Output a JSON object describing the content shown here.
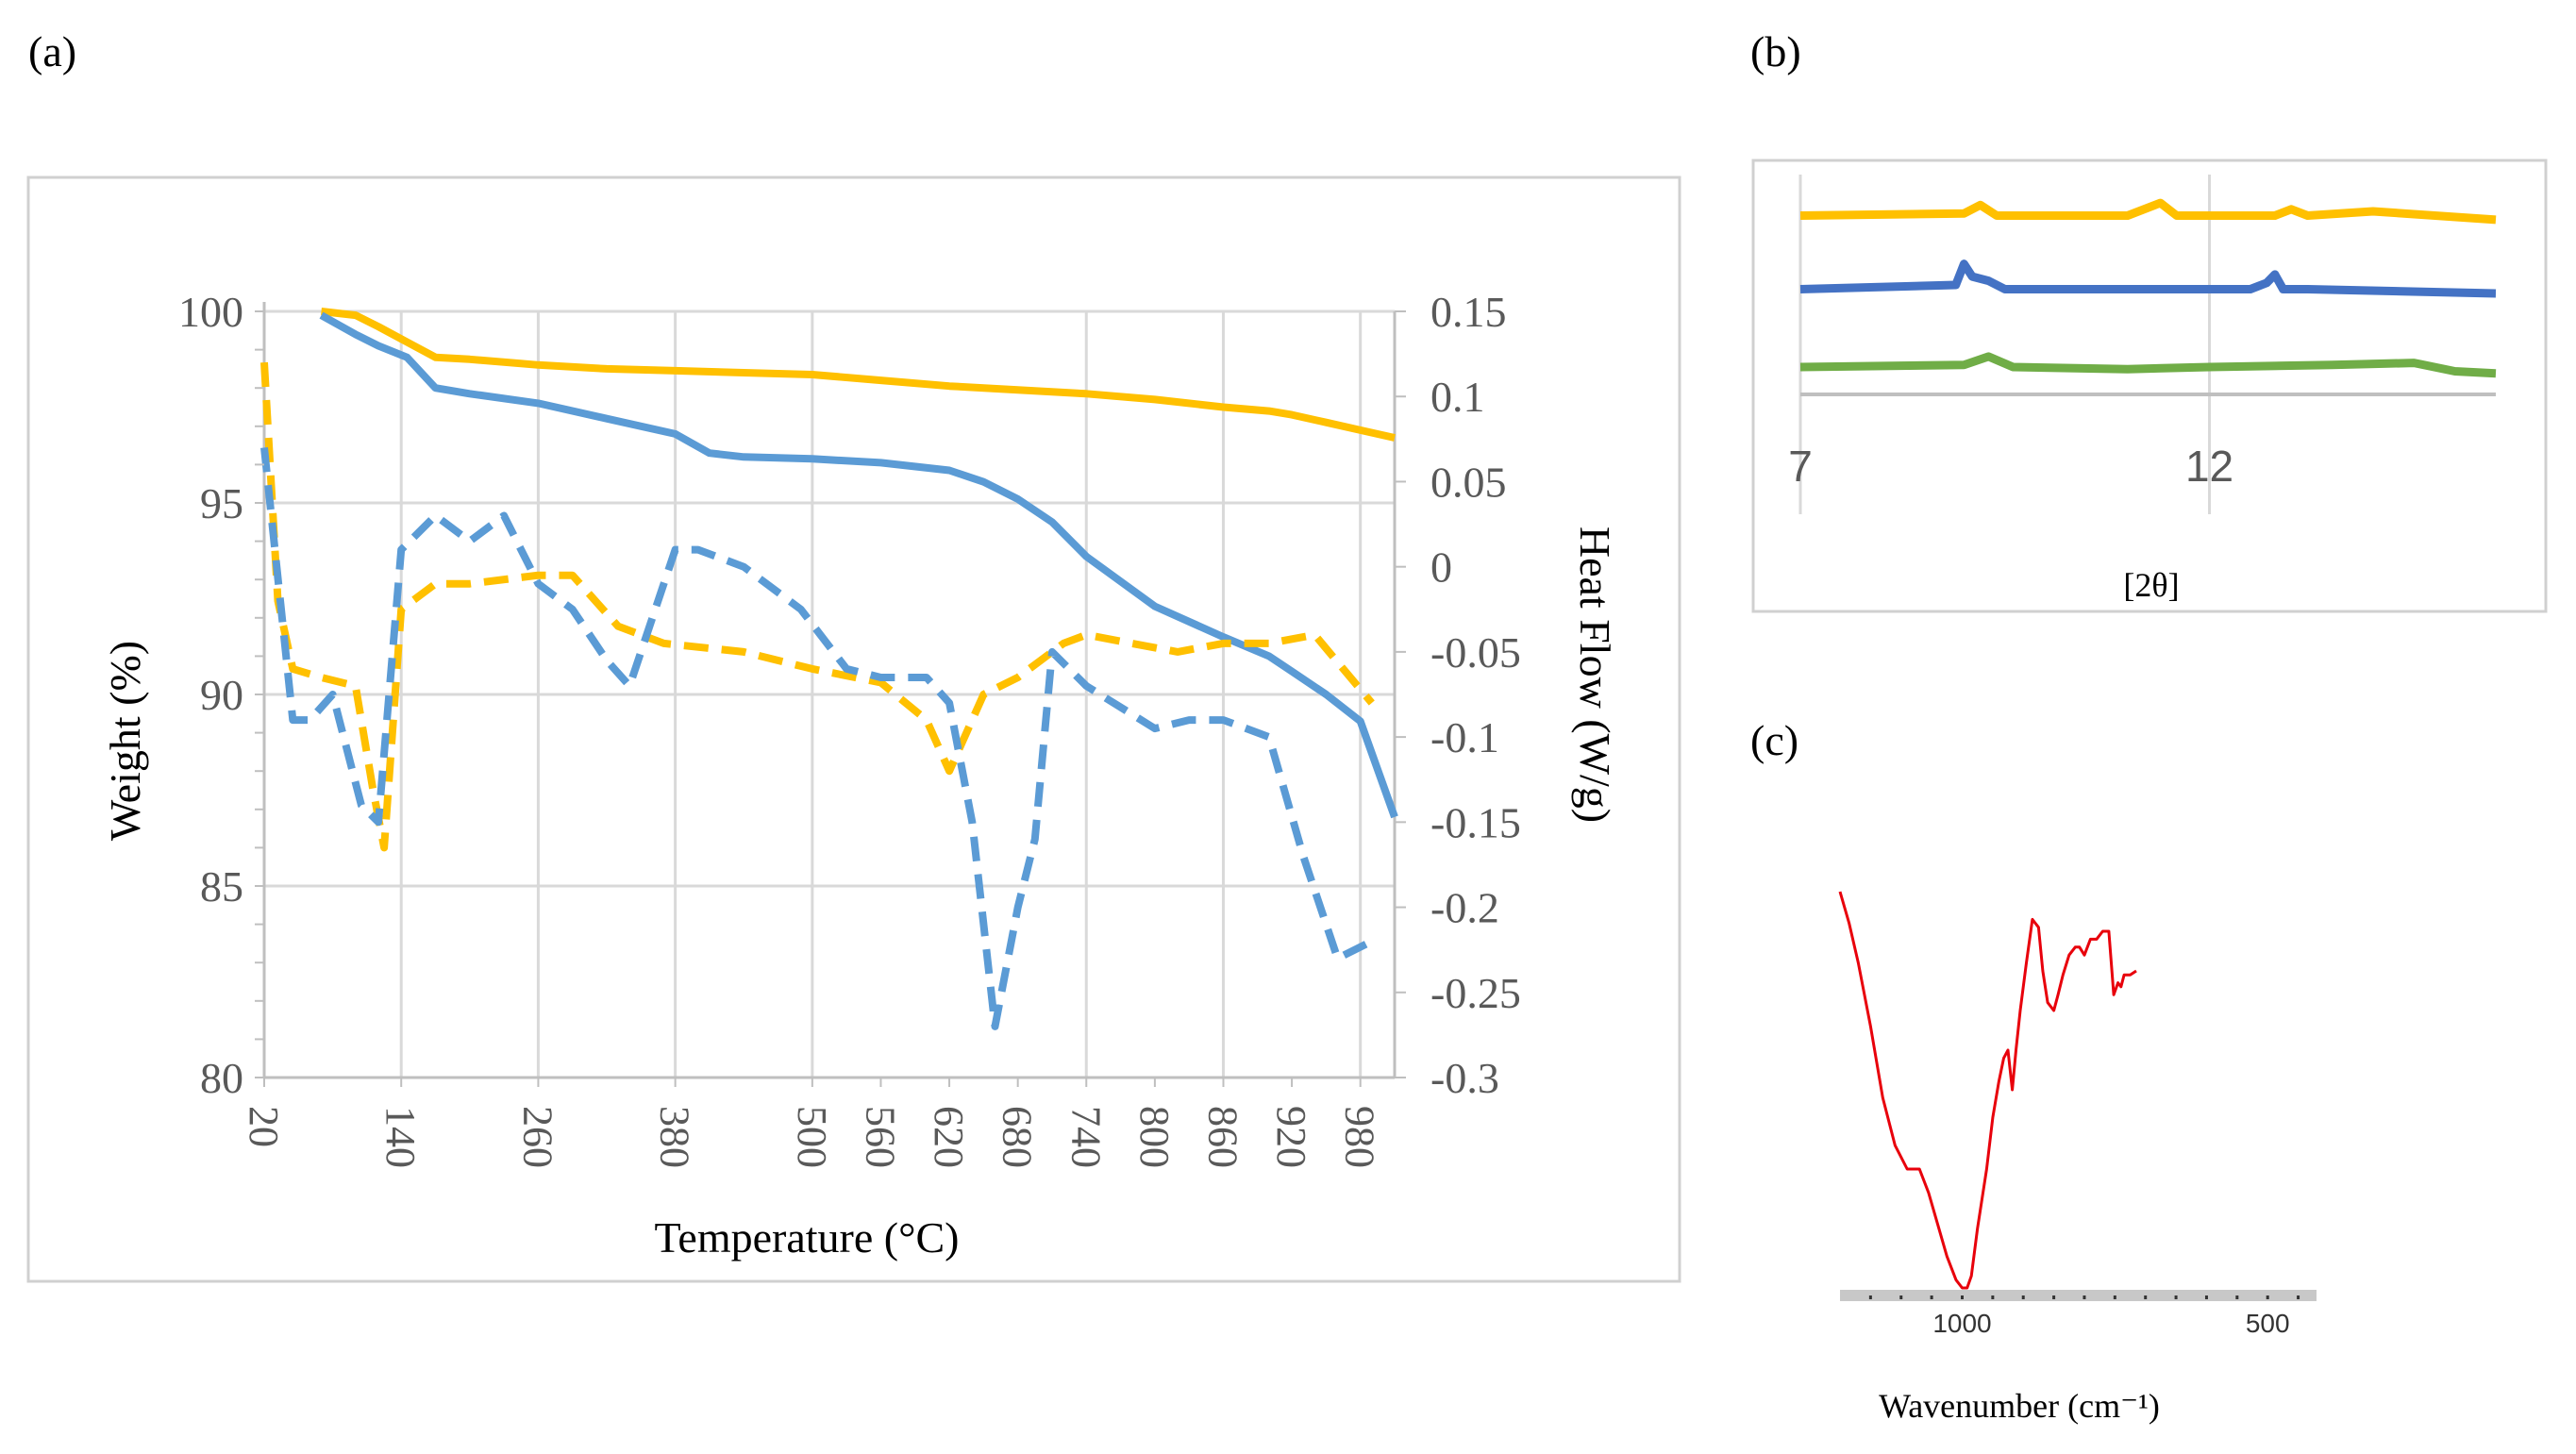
{
  "panel_labels": {
    "a": "(a)",
    "b": "(b)",
    "c": "(c)"
  },
  "colors": {
    "yellow": "#FFC000",
    "blue": "#5B9BD5",
    "xrd_blue": "#4472C4",
    "xrd_green": "#70AD47",
    "ftir_red": "#E8000B",
    "grid": "#D9D9D9",
    "axis": "#BFBFBF",
    "text": "#595959",
    "frame": "#D0D0D0"
  },
  "chart_data": [
    {
      "type": "line",
      "panel": "a",
      "title": "",
      "xlabel": "Temperature (°C)",
      "ylabel": "Weight (%)",
      "y2label": "Heat Flow (W/g)",
      "xlim": [
        20,
        1010
      ],
      "ylim": [
        80,
        100
      ],
      "y2lim": [
        -0.3,
        0.15
      ],
      "x_ticks": [
        "20",
        "140",
        "260",
        "380",
        "500",
        "560",
        "620",
        "680",
        "740",
        "800",
        "860",
        "920",
        "980"
      ],
      "x_tick_values": [
        20,
        140,
        260,
        380,
        500,
        560,
        620,
        680,
        740,
        800,
        860,
        920,
        980
      ],
      "y_ticks": [
        "80",
        "85",
        "90",
        "95",
        "100"
      ],
      "y2_ticks": [
        "-0.3",
        "-0.25",
        "-0.2",
        "-0.15",
        "-0.1",
        "-0.05",
        "0",
        "0.05",
        "0.1",
        "0.15"
      ],
      "series": [
        {
          "name": "Weight yellow",
          "axis": "left",
          "color": "yellow",
          "style": "solid",
          "x": [
            70,
            100,
            120,
            145,
            170,
            200,
            260,
            320,
            380,
            440,
            500,
            560,
            620,
            680,
            740,
            800,
            860,
            900,
            920,
            950,
            980,
            1010
          ],
          "y": [
            100,
            99.9,
            99.6,
            99.2,
            98.8,
            98.75,
            98.6,
            98.5,
            98.45,
            98.4,
            98.35,
            98.2,
            98.05,
            97.95,
            97.85,
            97.7,
            97.5,
            97.4,
            97.3,
            97.1,
            96.9,
            96.7
          ]
        },
        {
          "name": "Weight blue",
          "axis": "left",
          "color": "blue",
          "style": "solid",
          "x": [
            70,
            100,
            120,
            145,
            170,
            200,
            260,
            320,
            380,
            410,
            440,
            500,
            560,
            620,
            650,
            680,
            710,
            740,
            800,
            860,
            900,
            920,
            950,
            980,
            1010
          ],
          "y": [
            99.9,
            99.4,
            99.1,
            98.8,
            98.0,
            97.85,
            97.6,
            97.2,
            96.8,
            96.3,
            96.2,
            96.15,
            96.05,
            95.85,
            95.55,
            95.1,
            94.5,
            93.6,
            92.3,
            91.5,
            91.0,
            90.6,
            90.0,
            89.3,
            86.8
          ]
        },
        {
          "name": "Heat flow yellow",
          "axis": "right",
          "color": "yellow",
          "style": "dashed",
          "x": [
            20,
            32,
            45,
            70,
            100,
            115,
            125,
            140,
            170,
            200,
            260,
            290,
            330,
            370,
            440,
            500,
            560,
            600,
            620,
            650,
            680,
            700,
            720,
            740,
            780,
            820,
            860,
            900,
            940,
            990
          ],
          "y": [
            0.12,
            -0.02,
            -0.06,
            -0.065,
            -0.07,
            -0.13,
            -0.165,
            -0.025,
            -0.01,
            -0.01,
            -0.005,
            -0.005,
            -0.035,
            -0.045,
            -0.05,
            -0.06,
            -0.068,
            -0.09,
            -0.12,
            -0.075,
            -0.065,
            -0.055,
            -0.045,
            -0.04,
            -0.045,
            -0.05,
            -0.045,
            -0.045,
            -0.04,
            -0.08
          ]
        },
        {
          "name": "Heat flow blue",
          "axis": "right",
          "color": "blue",
          "style": "dashed",
          "x": [
            20,
            45,
            60,
            80,
            105,
            120,
            140,
            170,
            200,
            230,
            260,
            290,
            320,
            340,
            380,
            400,
            440,
            490,
            530,
            560,
            600,
            620,
            640,
            660,
            680,
            695,
            710,
            740,
            800,
            830,
            860,
            900,
            930,
            960,
            990
          ],
          "y": [
            0.07,
            -0.09,
            -0.09,
            -0.075,
            -0.14,
            -0.15,
            0.01,
            0.03,
            0.015,
            0.03,
            -0.01,
            -0.025,
            -0.055,
            -0.07,
            0.01,
            0.01,
            0.0,
            -0.025,
            -0.06,
            -0.065,
            -0.065,
            -0.08,
            -0.15,
            -0.27,
            -0.2,
            -0.16,
            -0.05,
            -0.07,
            -0.095,
            -0.09,
            -0.09,
            -0.1,
            -0.17,
            -0.23,
            -0.22
          ]
        }
      ]
    },
    {
      "type": "line",
      "panel": "b",
      "title": "",
      "xlabel": "[2θ]",
      "ylabel": "",
      "xlim": [
        7,
        15.5
      ],
      "x_ticks": [
        "7",
        "12"
      ],
      "x_tick_values": [
        7,
        12
      ],
      "series": [
        {
          "name": "XRD yellow",
          "color": "yellow",
          "offset": 0.85,
          "x": [
            7,
            9.0,
            9.2,
            9.4,
            11.0,
            11.4,
            11.6,
            12.0,
            12.8,
            13.0,
            13.2,
            14.0,
            15.5
          ],
          "y": [
            0.0,
            0.01,
            0.05,
            0.0,
            0.0,
            0.06,
            0.0,
            0.0,
            0.0,
            0.03,
            0.0,
            0.02,
            -0.02
          ]
        },
        {
          "name": "XRD blue",
          "color": "xrd_blue",
          "offset": 0.5,
          "x": [
            7,
            8.9,
            9.0,
            9.1,
            9.3,
            9.5,
            11.5,
            12.5,
            12.7,
            12.8,
            12.9,
            13.2,
            15.5
          ],
          "y": [
            0.0,
            0.02,
            0.12,
            0.06,
            0.04,
            0.0,
            0.0,
            0.0,
            0.03,
            0.07,
            0.0,
            0.0,
            -0.02
          ]
        },
        {
          "name": "XRD green",
          "color": "xrd_green",
          "offset": 0.13,
          "x": [
            7,
            9.0,
            9.3,
            9.6,
            11.0,
            12.0,
            13.5,
            14.5,
            15.0,
            15.5
          ],
          "y": [
            0.0,
            0.01,
            0.05,
            0.0,
            -0.01,
            0.0,
            0.01,
            0.02,
            -0.02,
            -0.03
          ]
        }
      ]
    },
    {
      "type": "line",
      "panel": "c",
      "title": "",
      "xlabel": "Wavenumber (cm⁻¹)",
      "ylabel": "",
      "xlim": [
        1200,
        420
      ],
      "x_ticks": [
        "1000",
        "500"
      ],
      "x_tick_values": [
        1000,
        500
      ],
      "series": [
        {
          "name": "FTIR",
          "color": "ftir_red",
          "x": [
            1200,
            1185,
            1170,
            1150,
            1130,
            1110,
            1090,
            1070,
            1055,
            1040,
            1025,
            1010,
            1000,
            992,
            985,
            975,
            960,
            950,
            940,
            932,
            925,
            918,
            912,
            905,
            895,
            885,
            875,
            868,
            860,
            850,
            843,
            835,
            825,
            815,
            808,
            800,
            790,
            780,
            770,
            760,
            752,
            745,
            740,
            735,
            725,
            715
          ],
          "y": [
            1.0,
            0.92,
            0.82,
            0.66,
            0.48,
            0.36,
            0.3,
            0.3,
            0.24,
            0.16,
            0.08,
            0.02,
            0.0,
            0.0,
            0.03,
            0.15,
            0.3,
            0.43,
            0.52,
            0.58,
            0.6,
            0.5,
            0.6,
            0.7,
            0.82,
            0.93,
            0.91,
            0.8,
            0.72,
            0.7,
            0.74,
            0.79,
            0.84,
            0.86,
            0.86,
            0.84,
            0.88,
            0.88,
            0.9,
            0.9,
            0.74,
            0.77,
            0.76,
            0.79,
            0.79,
            0.8
          ]
        }
      ]
    }
  ]
}
